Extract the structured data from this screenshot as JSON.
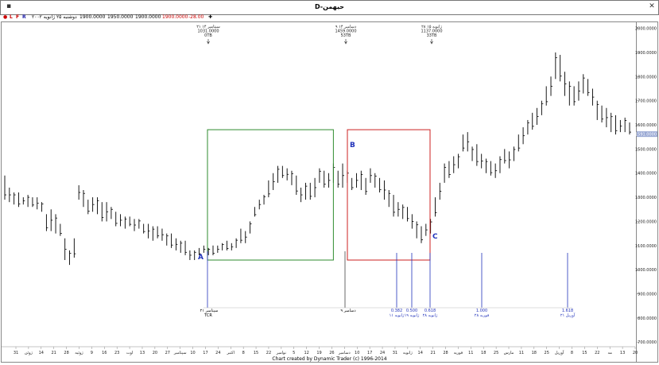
{
  "window": {
    "title": "D-حيهمن",
    "toolbar_letters": [
      "L",
      "F",
      "R"
    ],
    "info_date": "دوشنبه ۲۵ ژانویه ۲۰۰۲",
    "info_values": [
      "1900.0000",
      "1950.0000",
      "1900.0000",
      "1900.0000",
      "-28.00"
    ],
    "footer": "Chart created by Dynamic Trader (c) 1996-2014"
  },
  "chart_data": {
    "type": "ohlc-bar",
    "title": "",
    "xlabel": "",
    "ylabel": "",
    "ylim": [
      625,
      2025
    ],
    "y_ticks": [
      700,
      800,
      900,
      1000,
      1100,
      1200,
      1300,
      1400,
      1500,
      1600,
      1700,
      1800,
      1900,
      2000
    ],
    "y_tick_labels": [
      "700.0000",
      "800.0000",
      "900.0000",
      "1000.0000",
      "1100.0000",
      "1200.0000",
      "1300.0000",
      "1400.0000",
      "1500.0000",
      "1600.0000",
      "1700.0000",
      "1800.0000",
      "1900.0000",
      "2000.0000"
    ],
    "last_price_label": "1591.0000",
    "x_ticks": [
      "31",
      "ژوئن",
      "14",
      "21",
      "28",
      "ژوئیه",
      "9",
      "16",
      "23",
      "اوت",
      "13",
      "20",
      "27",
      "سپتامبر",
      "10",
      "17",
      "24",
      "اکتبر",
      "8",
      "15",
      "22",
      "نوامبر",
      "5",
      "12",
      "19",
      "26",
      "دسامبر",
      "10",
      "17",
      "24",
      "31",
      "ژانویه",
      "14",
      "21",
      "28",
      "فوریه",
      "11",
      "18",
      "25",
      "مارس",
      "11",
      "18",
      "25",
      "آوریل",
      "8",
      "15",
      "22",
      "مه",
      "13",
      "20"
    ],
    "series": [
      {
        "bars": [
          [
            1390,
            1290
          ],
          [
            1340,
            1280
          ],
          [
            1320,
            1270
          ],
          [
            1320,
            1260
          ],
          [
            1300,
            1270
          ],
          [
            1310,
            1260
          ],
          [
            1300,
            1260
          ],
          [
            1300,
            1250
          ],
          [
            1280,
            1240
          ],
          [
            1230,
            1160
          ],
          [
            1250,
            1160
          ],
          [
            1230,
            1150
          ],
          [
            1190,
            1140
          ],
          [
            1130,
            1040
          ],
          [
            1080,
            1020
          ],
          [
            1130,
            1050
          ],
          [
            1350,
            1290
          ],
          [
            1330,
            1260
          ],
          [
            1290,
            1230
          ],
          [
            1300,
            1240
          ],
          [
            1300,
            1230
          ],
          [
            1280,
            1200
          ],
          [
            1280,
            1200
          ],
          [
            1260,
            1210
          ],
          [
            1240,
            1180
          ],
          [
            1230,
            1180
          ],
          [
            1220,
            1170
          ],
          [
            1220,
            1180
          ],
          [
            1210,
            1160
          ],
          [
            1210,
            1170
          ],
          [
            1190,
            1150
          ],
          [
            1190,
            1130
          ],
          [
            1180,
            1120
          ],
          [
            1180,
            1130
          ],
          [
            1170,
            1120
          ],
          [
            1150,
            1100
          ],
          [
            1150,
            1090
          ],
          [
            1130,
            1080
          ],
          [
            1120,
            1070
          ],
          [
            1120,
            1060
          ],
          [
            1080,
            1040
          ],
          [
            1080,
            1040
          ],
          [
            1090,
            1060
          ],
          [
            1100,
            1070
          ],
          [
            1090,
            1060
          ],
          [
            1100,
            1060
          ],
          [
            1100,
            1070
          ],
          [
            1110,
            1080
          ],
          [
            1120,
            1080
          ],
          [
            1110,
            1080
          ],
          [
            1130,
            1090
          ],
          [
            1170,
            1110
          ],
          [
            1160,
            1110
          ],
          [
            1200,
            1150
          ],
          [
            1260,
            1220
          ],
          [
            1290,
            1250
          ],
          [
            1310,
            1270
          ],
          [
            1370,
            1300
          ],
          [
            1400,
            1330
          ],
          [
            1430,
            1360
          ],
          [
            1430,
            1380
          ],
          [
            1420,
            1370
          ],
          [
            1410,
            1350
          ],
          [
            1390,
            1310
          ],
          [
            1340,
            1280
          ],
          [
            1360,
            1290
          ],
          [
            1360,
            1290
          ],
          [
            1380,
            1300
          ],
          [
            1420,
            1360
          ],
          [
            1410,
            1340
          ],
          [
            1400,
            1340
          ],
          [
            1440,
            1360
          ],
          [
            1410,
            1340
          ],
          [
            1440,
            1340
          ],
          [
            1410,
            1360
          ],
          [
            1380,
            1330
          ],
          [
            1400,
            1340
          ],
          [
            1410,
            1330
          ],
          [
            1380,
            1310
          ],
          [
            1420,
            1360
          ],
          [
            1400,
            1340
          ],
          [
            1380,
            1320
          ],
          [
            1370,
            1290
          ],
          [
            1330,
            1260
          ],
          [
            1310,
            1220
          ],
          [
            1280,
            1220
          ],
          [
            1270,
            1210
          ],
          [
            1260,
            1200
          ],
          [
            1230,
            1170
          ],
          [
            1200,
            1130
          ],
          [
            1180,
            1110
          ],
          [
            1190,
            1140
          ],
          [
            1210,
            1150
          ],
          [
            1300,
            1220
          ],
          [
            1360,
            1290
          ],
          [
            1440,
            1360
          ],
          [
            1450,
            1380
          ],
          [
            1470,
            1400
          ],
          [
            1480,
            1420
          ],
          [
            1560,
            1490
          ],
          [
            1570,
            1490
          ],
          [
            1510,
            1450
          ],
          [
            1520,
            1430
          ],
          [
            1480,
            1420
          ],
          [
            1460,
            1400
          ],
          [
            1450,
            1390
          ],
          [
            1440,
            1380
          ],
          [
            1470,
            1400
          ],
          [
            1500,
            1440
          ],
          [
            1490,
            1420
          ],
          [
            1510,
            1450
          ],
          [
            1560,
            1490
          ],
          [
            1590,
            1520
          ],
          [
            1620,
            1560
          ],
          [
            1650,
            1580
          ],
          [
            1670,
            1600
          ],
          [
            1700,
            1640
          ],
          [
            1760,
            1680
          ],
          [
            1800,
            1720
          ],
          [
            1900,
            1790
          ],
          [
            1890,
            1780
          ],
          [
            1820,
            1720
          ],
          [
            1780,
            1680
          ],
          [
            1760,
            1680
          ],
          [
            1780,
            1700
          ],
          [
            1810,
            1730
          ],
          [
            1790,
            1720
          ],
          [
            1750,
            1680
          ],
          [
            1700,
            1620
          ],
          [
            1680,
            1610
          ],
          [
            1670,
            1590
          ],
          [
            1650,
            1570
          ],
          [
            1640,
            1560
          ],
          [
            1620,
            1570
          ],
          [
            1630,
            1570
          ],
          [
            1610,
            1560
          ]
        ]
      }
    ],
    "points": [
      "A",
      "B",
      "C"
    ],
    "boxes": [
      "A-B",
      "B-C"
    ],
    "top_annotations": [
      [
        "۲۱ سپتامبر ۱۴",
        "1031.0000",
        "0TB"
      ],
      [
        "۹ دسامبر ۱۴",
        "1459.0000",
        "53TB"
      ],
      [
        "۲۸ ژانویه ۱۵",
        "1137.0000",
        "33TB"
      ]
    ],
    "ratio_labels": [
      [
        "0.382",
        "۱۱ ژانویه"
      ],
      [
        "0.500",
        "۱۹ ژانویه"
      ],
      [
        "0.618",
        "۲۸ ژانویه"
      ],
      [
        "1.000",
        "۲۸ فوریه"
      ],
      [
        "1.618",
        "۲۱ آوریل"
      ]
    ],
    "bottom_date_labels": [
      "۲۱ سپتامبر",
      "۹ دسامبر"
    ],
    "tcr_label": "TCR"
  },
  "colors": {
    "bar": "#000000",
    "box_green": "#2e8b2e",
    "box_red": "#cc2222",
    "marker_blue": "#2233bb",
    "axis": "#888888"
  }
}
